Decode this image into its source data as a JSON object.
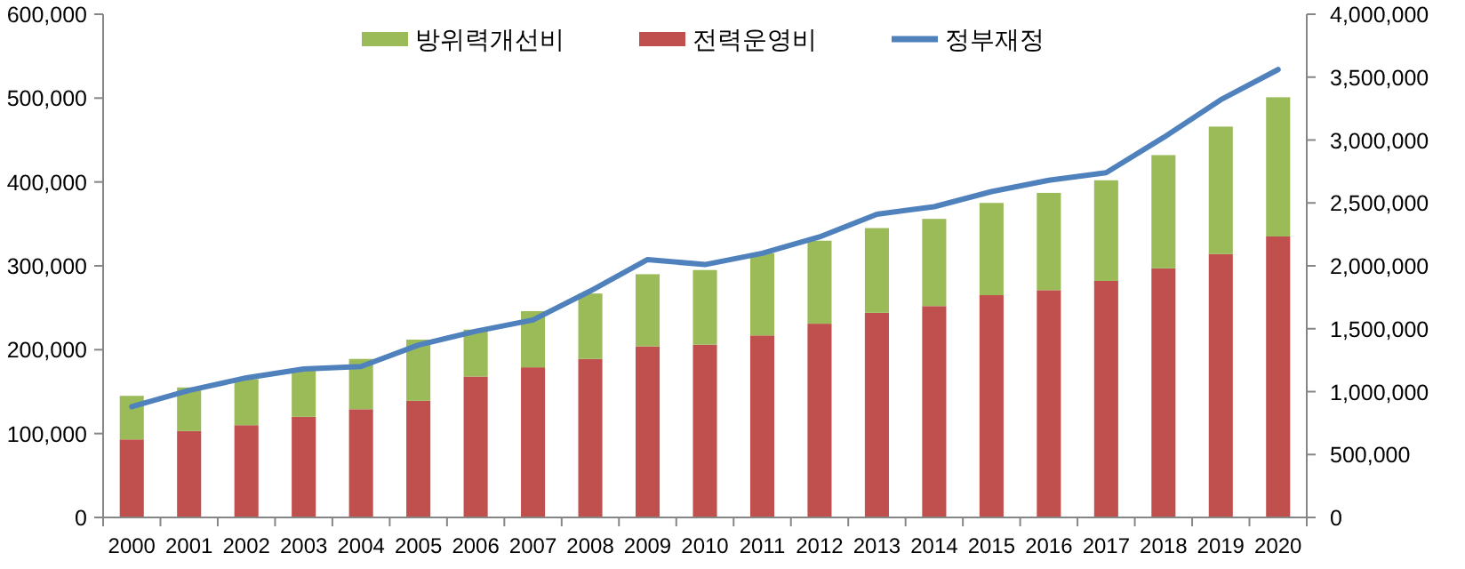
{
  "chart_data": {
    "type": "bar",
    "stacked": true,
    "categories": [
      "2000",
      "2001",
      "2002",
      "2003",
      "2004",
      "2005",
      "2006",
      "2007",
      "2008",
      "2009",
      "2010",
      "2011",
      "2012",
      "2013",
      "2014",
      "2015",
      "2016",
      "2017",
      "2018",
      "2019",
      "2020"
    ],
    "series": [
      {
        "name": "전력운영비",
        "color": "#c0504d",
        "values": [
          93000,
          103000,
          110000,
          120000,
          129000,
          139000,
          168000,
          179000,
          189000,
          204000,
          206000,
          217000,
          231000,
          244000,
          252000,
          265000,
          271000,
          282000,
          297000,
          314000,
          335000
        ]
      },
      {
        "name": "방위력개선비",
        "color": "#9bbb59",
        "values": [
          52000,
          52000,
          55000,
          55000,
          60000,
          73000,
          56000,
          67000,
          78000,
          86000,
          89000,
          98000,
          99000,
          101000,
          104000,
          110000,
          116000,
          120000,
          135000,
          152000,
          166000
        ]
      },
      {
        "name": "정부재정",
        "type": "line",
        "axis": "y2",
        "color": "#4f81bd",
        "values": [
          880000,
          1010000,
          1110000,
          1180000,
          1200000,
          1370000,
          1480000,
          1570000,
          1800000,
          2050000,
          2010000,
          2100000,
          2230000,
          2410000,
          2470000,
          2590000,
          2680000,
          2740000,
          3020000,
          3320000,
          3560000
        ]
      }
    ],
    "ylim": [
      0,
      600000
    ],
    "yticks": [
      {
        "value": 0,
        "label": "0"
      },
      {
        "value": 100000,
        "label": "100,000"
      },
      {
        "value": 200000,
        "label": "200,000"
      },
      {
        "value": 300000,
        "label": "300,000"
      },
      {
        "value": 400000,
        "label": "400,000"
      },
      {
        "value": 500000,
        "label": "500,000"
      },
      {
        "value": 600000,
        "label": "600,000"
      }
    ],
    "y2lim": [
      0,
      4000000
    ],
    "y2ticks": [
      {
        "value": 0,
        "label": "0"
      },
      {
        "value": 500000,
        "label": "500,000"
      },
      {
        "value": 1000000,
        "label": "1,000,000"
      },
      {
        "value": 1500000,
        "label": "1,500,000"
      },
      {
        "value": 2000000,
        "label": "2,000,000"
      },
      {
        "value": 2500000,
        "label": "2,500,000"
      },
      {
        "value": 3000000,
        "label": "3,000,000"
      },
      {
        "value": 3500000,
        "label": "3,500,000"
      },
      {
        "value": 4000000,
        "label": "4,000,000"
      }
    ],
    "grid": false,
    "legend": "top",
    "marker": "none",
    "line_style": "solid"
  }
}
